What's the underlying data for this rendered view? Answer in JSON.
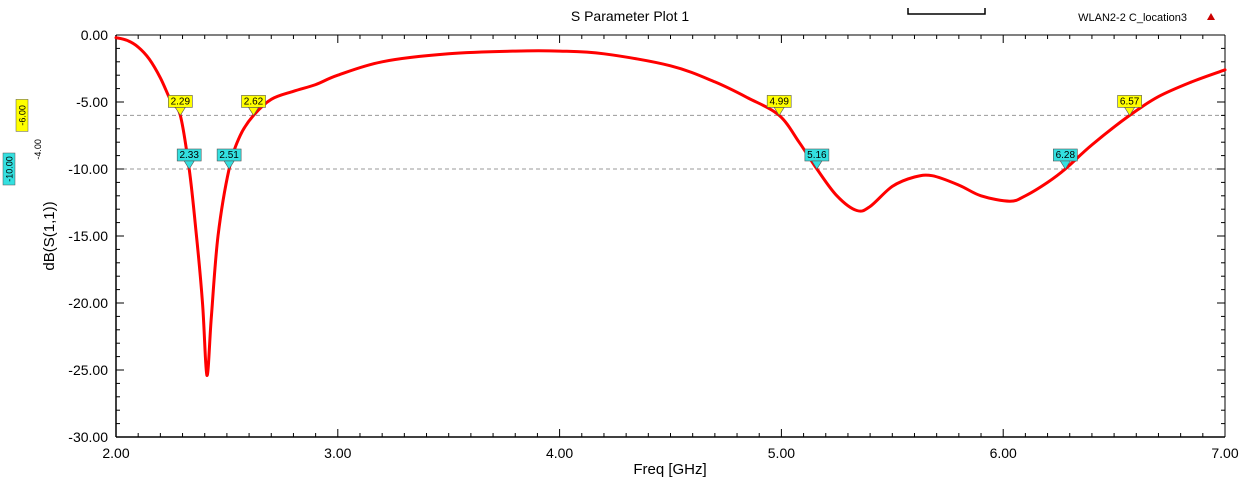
{
  "chart_data": {
    "type": "line",
    "title": "S Parameter Plot 1",
    "xlabel": "Freq [GHz]",
    "ylabel": "dB(S(1,1))",
    "xlim": [
      2.0,
      7.0
    ],
    "ylim": [
      -30.0,
      0.0
    ],
    "x_ticks": [
      "2.00",
      "3.00",
      "4.00",
      "5.00",
      "6.00",
      "7.00"
    ],
    "y_ticks": [
      "0.00",
      "-5.00",
      "-10.00",
      "-15.00",
      "-20.00",
      "-25.00",
      "-30.00"
    ],
    "grid": false,
    "legend_position": "top-right",
    "series": [
      {
        "name": "WLAN2-2 C_location3",
        "color": "#ff0000",
        "x": [
          2.0,
          2.05,
          2.1,
          2.15,
          2.2,
          2.25,
          2.29,
          2.33,
          2.36,
          2.39,
          2.41,
          2.43,
          2.46,
          2.51,
          2.56,
          2.62,
          2.7,
          2.8,
          2.9,
          3.0,
          3.2,
          3.5,
          3.8,
          4.0,
          4.2,
          4.5,
          4.7,
          4.85,
          4.99,
          5.08,
          5.16,
          5.25,
          5.34,
          5.4,
          5.5,
          5.6,
          5.68,
          5.8,
          5.9,
          6.03,
          6.1,
          6.2,
          6.28,
          6.4,
          6.57,
          6.7,
          6.85,
          7.0
        ],
        "y": [
          -0.2,
          -0.4,
          -0.9,
          -1.8,
          -3.2,
          -5.0,
          -6.0,
          -10.0,
          -14.5,
          -20.0,
          -25.4,
          -21.0,
          -15.0,
          -10.0,
          -7.5,
          -6.0,
          -4.8,
          -4.2,
          -3.7,
          -3.0,
          -2.0,
          -1.4,
          -1.2,
          -1.2,
          -1.4,
          -2.3,
          -3.5,
          -4.7,
          -6.0,
          -8.0,
          -10.0,
          -12.0,
          -13.1,
          -12.8,
          -11.3,
          -10.6,
          -10.5,
          -11.2,
          -12.0,
          -12.4,
          -12.0,
          -11.0,
          -10.0,
          -8.2,
          -6.0,
          -4.6,
          -3.5,
          -2.6
        ]
      }
    ],
    "limit_lines": [
      {
        "y": -6.0,
        "label": "-6.00",
        "sub_label": "-4.00",
        "color": "#ffff00"
      },
      {
        "y": -10.0,
        "label": "-10.00",
        "color": "#33e0e0"
      }
    ],
    "markers": [
      {
        "x": 2.29,
        "y": -6.0,
        "label": "2.29",
        "color": "#ffff00"
      },
      {
        "x": 2.62,
        "y": -6.0,
        "label": "2.62",
        "color": "#ffff00"
      },
      {
        "x": 4.99,
        "y": -6.0,
        "label": "4.99",
        "color": "#ffff00"
      },
      {
        "x": 6.57,
        "y": -6.0,
        "label": "6.57",
        "color": "#ffff00"
      },
      {
        "x": 2.33,
        "y": -10.0,
        "label": "2.33",
        "color": "#33e0e0"
      },
      {
        "x": 2.51,
        "y": -10.0,
        "label": "2.51",
        "color": "#33e0e0"
      },
      {
        "x": 5.16,
        "y": -10.0,
        "label": "5.16",
        "color": "#33e0e0"
      },
      {
        "x": 6.28,
        "y": -10.0,
        "label": "6.28",
        "color": "#33e0e0"
      }
    ]
  },
  "legend": {
    "label": "WLAN2-2 C_location3",
    "icon": "triangle-up-icon",
    "icon_color": "#cc0000"
  },
  "colors": {
    "curve": "#ff0000",
    "axis": "#000000",
    "limit_line": "#999999",
    "marker_border": "#555555"
  }
}
